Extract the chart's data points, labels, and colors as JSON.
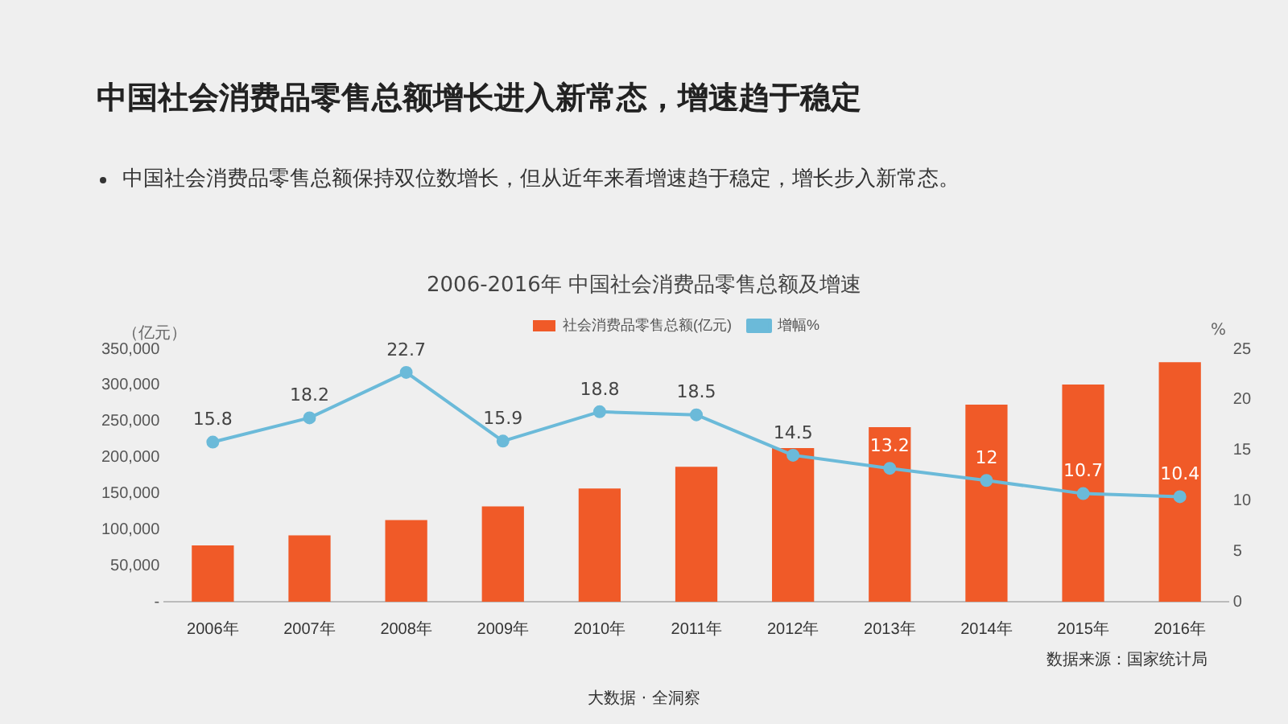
{
  "chart_data": {
    "type": "bar",
    "title": "中国社会消费品零售总额增长进入新常态，增速趋于稳定",
    "subtitle": "中国社会消费品零售总额保持双位数增长，但从近年来看增速趋于稳定，增长步入新常态。",
    "ylabel": "（亿元）",
    "y2label": "%",
    "annotations": [
      "2006-2016年 中国社会消费品零售总额及增速",
      "数据来源：国家统计局",
      "大数据 · 全洞察"
    ],
    "categories": [
      "2006年",
      "2007年",
      "2008年",
      "2009年",
      "2010年",
      "2011年",
      "2012年",
      "2013年",
      "2014年",
      "2015年",
      "2016年"
    ],
    "series": [
      {
        "name": "社会消费品零售总额(亿元)",
        "color": "#f05a28",
        "values": [
          78000,
          92000,
          113000,
          132000,
          157000,
          187000,
          213000,
          242000,
          273000,
          301000,
          332000
        ]
      },
      {
        "name": "增幅%",
        "type": "line",
        "axis": "y2",
        "color": "#6bbad9",
        "values": [
          15.8,
          18.2,
          22.7,
          15.9,
          18.8,
          18.5,
          14.5,
          13.2,
          12,
          10.7,
          10.4
        ],
        "value_labels": [
          "15.8",
          "18.2",
          "22.7",
          "15.9",
          "18.8",
          "18.5",
          "14.5",
          "13.2",
          "12",
          "10.7",
          "10.4"
        ]
      }
    ],
    "ylim": [
      0,
      350000
    ],
    "yticks": [
      {
        "value": 0,
        "label": "-"
      },
      {
        "value": 50000,
        "label": "50,000"
      },
      {
        "value": 100000,
        "label": "100,000"
      },
      {
        "value": 150000,
        "label": "150,000"
      },
      {
        "value": 200000,
        "label": "200,000"
      },
      {
        "value": 250000,
        "label": "250,000"
      },
      {
        "value": 300000,
        "label": "300,000"
      },
      {
        "value": 350000,
        "label": "350,000"
      }
    ],
    "y2lim": [
      0,
      25
    ],
    "y2ticks": [
      0,
      5,
      10,
      15,
      20,
      25
    ],
    "grid": false,
    "legend": "top",
    "marker": "circle"
  }
}
